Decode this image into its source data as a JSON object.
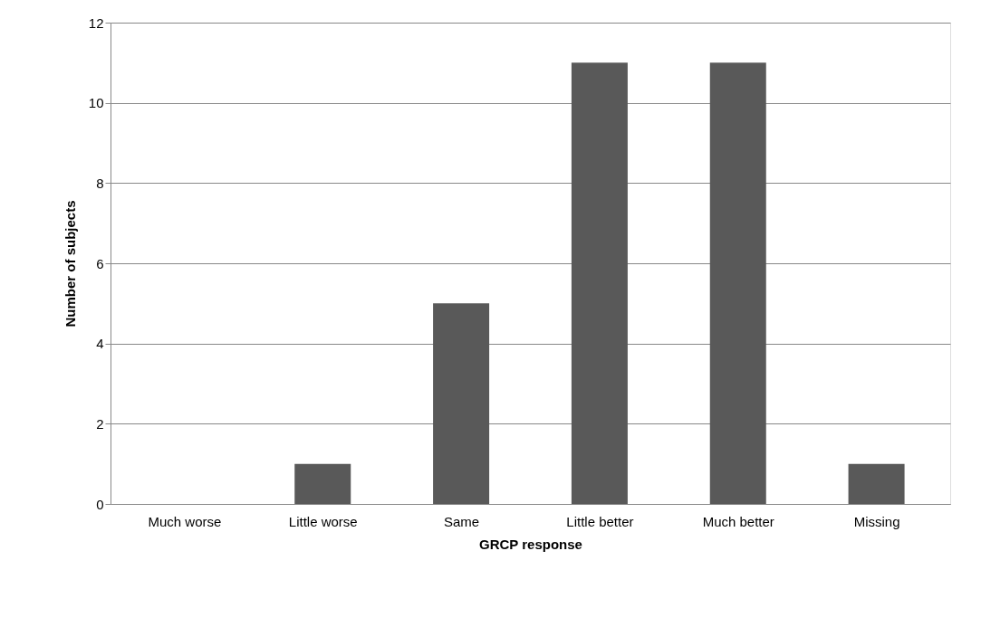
{
  "chart_data": {
    "type": "bar",
    "categories": [
      "Much worse",
      "Little worse",
      "Same",
      "Little better",
      "Much better",
      "Missing"
    ],
    "values": [
      0,
      1,
      5,
      11,
      11,
      1
    ],
    "color": "#595959",
    "xlabel": "GRCP response",
    "ylabel": "Number of subjects",
    "ylim": [
      0,
      12
    ],
    "yticks": [
      0,
      2,
      4,
      6,
      8,
      10,
      12
    ],
    "grid": "y"
  }
}
